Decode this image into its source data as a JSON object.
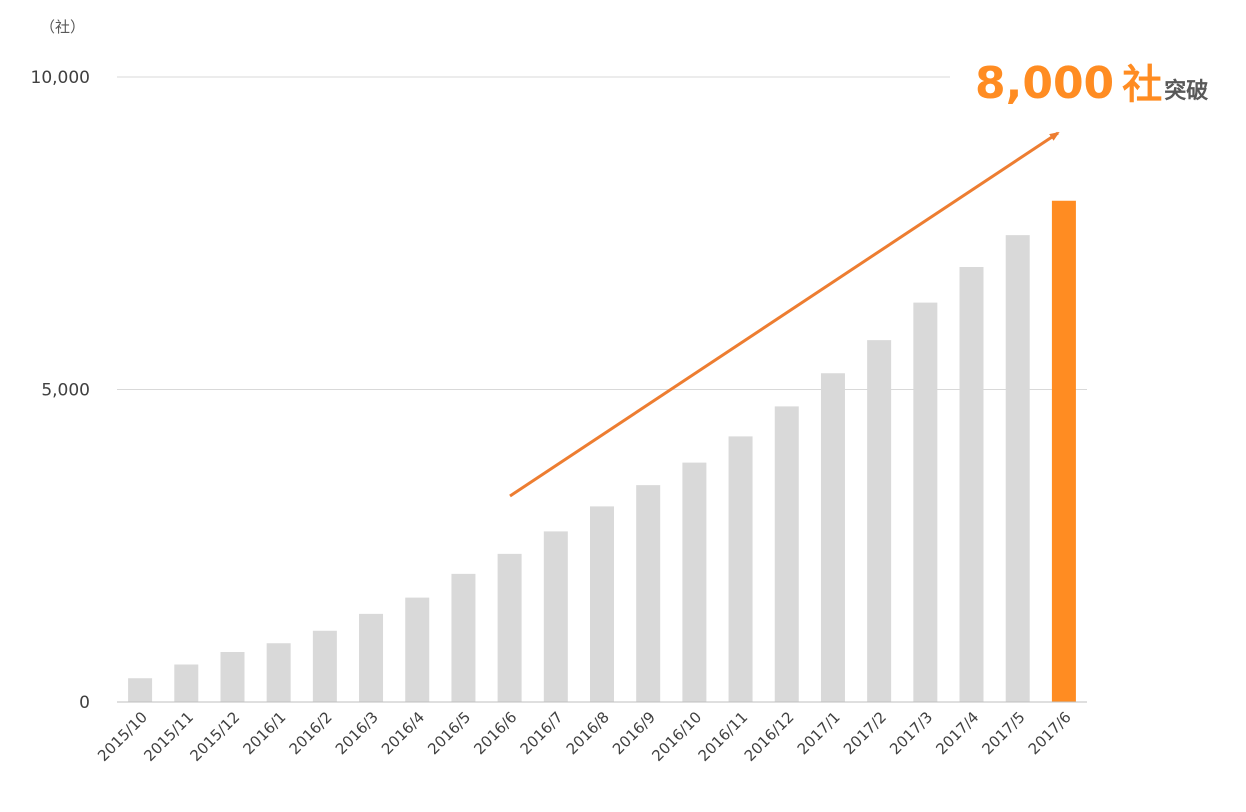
{
  "chart_data": {
    "type": "bar",
    "unit_label": "（社）",
    "categories": [
      "2015/10",
      "2015/11",
      "2015/12",
      "2016/1",
      "2016/2",
      "2016/3",
      "2016/4",
      "2016/5",
      "2016/6",
      "2016/7",
      "2016/8",
      "2016/9",
      "2016/10",
      "2016/11",
      "2016/12",
      "2017/1",
      "2017/2",
      "2017/3",
      "2017/4",
      "2017/5",
      "2017/6"
    ],
    "values": [
      380,
      600,
      800,
      940,
      1140,
      1410,
      1670,
      2050,
      2370,
      2730,
      3130,
      3470,
      3830,
      4250,
      4730,
      5260,
      5790,
      6390,
      6960,
      7470,
      8020
    ],
    "ylim": [
      0,
      10000
    ],
    "yticks": [
      0,
      5000,
      10000
    ],
    "ytick_labels": [
      "0",
      "5,000",
      "10,000"
    ],
    "grid": true,
    "highlight_index": 20,
    "annotation": {
      "value_text": "8,000",
      "unit_text": "社",
      "suffix_text": "突破"
    }
  },
  "colors": {
    "bar": "#d9d9d9",
    "highlight": "#ff8c22",
    "arrow": "#ed7d31",
    "gridline": "#d9d9d9",
    "axis": "#bfbfbf"
  }
}
